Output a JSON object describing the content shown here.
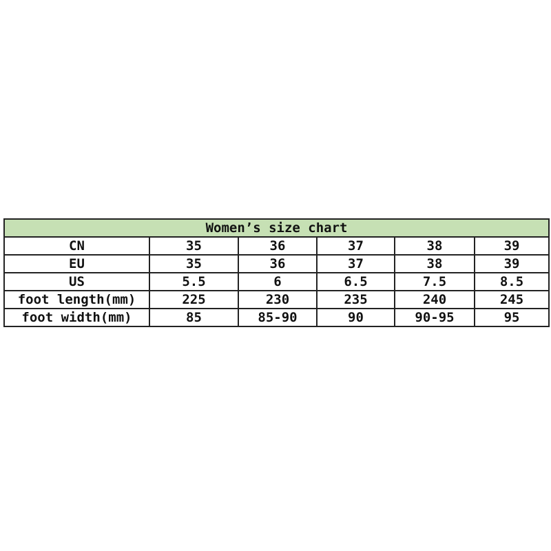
{
  "title": "Women’s size chart",
  "header_color": "#c6e0b4",
  "rows": [
    {
      "label": "CN",
      "values": [
        "35",
        "36",
        "37",
        "38",
        "39"
      ]
    },
    {
      "label": "EU",
      "values": [
        "35",
        "36",
        "37",
        "38",
        "39"
      ]
    },
    {
      "label": "US",
      "values": [
        "5.5",
        "6",
        "6.5",
        "7.5",
        "8.5"
      ]
    },
    {
      "label": "foot length(mm)",
      "values": [
        "225",
        "230",
        "235",
        "240",
        "245"
      ]
    },
    {
      "label": "foot width(mm)",
      "values": [
        "85",
        "85-90",
        "90",
        "90-95",
        "95"
      ]
    }
  ]
}
